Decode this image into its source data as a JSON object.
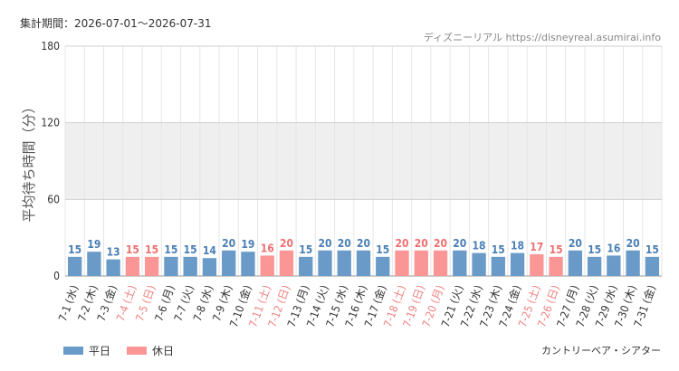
{
  "header": {
    "period_label": "集計期間：2026-07-01～2026-07-31",
    "source": "ディズニーリアル https://disneyreal.asumirai.info"
  },
  "footer": {
    "attraction": "カントリーベア・シアター"
  },
  "colors": {
    "weekday": "#6a9ac8",
    "holiday": "#fb9696",
    "holiday_text": "#f08080",
    "weekday_text": "#333333",
    "value_weekday": "#4a7fb5",
    "value_holiday": "#f07070",
    "band": "#efefef",
    "grid": "#e6e6e6"
  },
  "chart_data": {
    "type": "bar",
    "title": "",
    "xlabel": "",
    "ylabel": "平均待ち時間（分）",
    "ylim": [
      0,
      180
    ],
    "yticks": [
      0,
      60,
      120,
      180
    ],
    "categories": [
      "7-1 (水)",
      "7-2 (木)",
      "7-3 (金)",
      "7-4 (土)",
      "7-5 (日)",
      "7-6 (月)",
      "7-7 (火)",
      "7-8 (水)",
      "7-9 (木)",
      "7-10 (金)",
      "7-11 (土)",
      "7-12 (日)",
      "7-13 (月)",
      "7-14 (火)",
      "7-15 (水)",
      "7-16 (木)",
      "7-17 (金)",
      "7-18 (土)",
      "7-19 (日)",
      "7-20 (月)",
      "7-21 (火)",
      "7-22 (水)",
      "7-23 (木)",
      "7-24 (金)",
      "7-25 (土)",
      "7-26 (日)",
      "7-27 (月)",
      "7-28 (火)",
      "7-29 (水)",
      "7-30 (木)",
      "7-31 (金)"
    ],
    "values": [
      15,
      19,
      13,
      15,
      15,
      15,
      15,
      14,
      20,
      19,
      16,
      20,
      15,
      20,
      20,
      20,
      15,
      20,
      20,
      20,
      20,
      18,
      15,
      18,
      17,
      15,
      20,
      15,
      16,
      20,
      15
    ],
    "holiday": [
      false,
      false,
      false,
      true,
      true,
      false,
      false,
      false,
      false,
      false,
      true,
      true,
      false,
      false,
      false,
      false,
      false,
      true,
      true,
      true,
      false,
      false,
      false,
      false,
      true,
      true,
      false,
      false,
      false,
      false,
      false
    ],
    "legend": [
      {
        "name": "平日",
        "key": "weekday"
      },
      {
        "name": "休日",
        "key": "holiday"
      }
    ],
    "legend_position": "bottom-left",
    "grid": true
  }
}
